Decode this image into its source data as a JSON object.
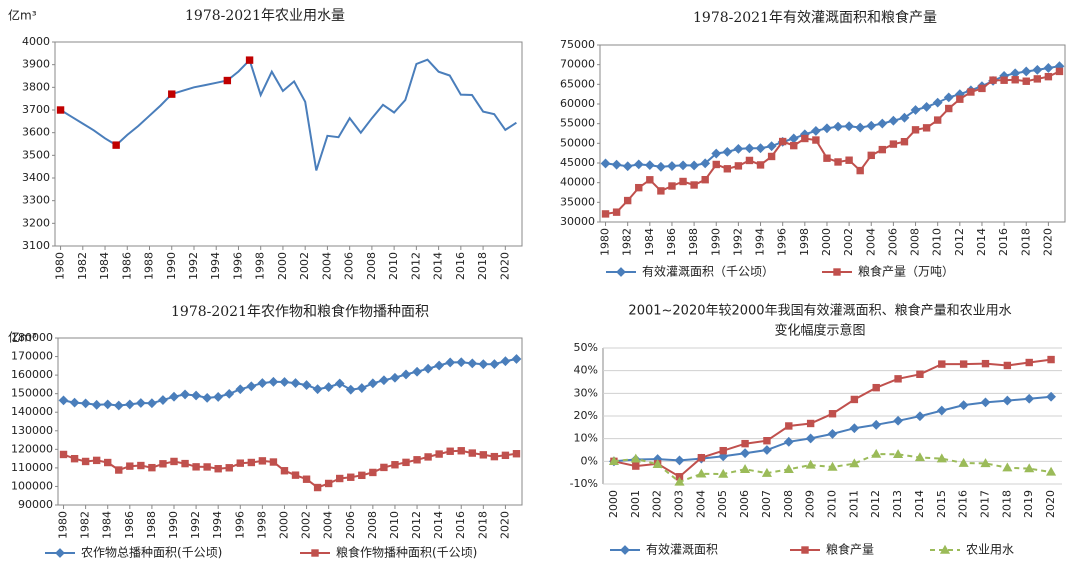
{
  "chart_data": [
    {
      "type": "line",
      "title": "1978-2021年农业用水量",
      "y_label": "亿m³",
      "x": [
        1980,
        1981,
        1982,
        1983,
        1984,
        1985,
        1986,
        1987,
        1988,
        1989,
        1990,
        1991,
        1992,
        1993,
        1994,
        1995,
        1996,
        1997,
        1998,
        1999,
        2000,
        2001,
        2002,
        2003,
        2004,
        2005,
        2006,
        2007,
        2008,
        2009,
        2010,
        2011,
        2012,
        2013,
        2014,
        2015,
        2016,
        2017,
        2018,
        2019,
        2020,
        2021
      ],
      "xlim": [
        1979.5,
        2021.5
      ],
      "xticks": [
        1980,
        1982,
        1984,
        1986,
        1988,
        1990,
        1992,
        1994,
        1996,
        1998,
        2000,
        2002,
        2004,
        2006,
        2008,
        2010,
        2012,
        2014,
        2016,
        2018,
        2020
      ],
      "ylim": [
        3100,
        4000
      ],
      "yticks": [
        3100,
        3200,
        3300,
        3400,
        3500,
        3600,
        3700,
        3800,
        3900,
        4000
      ],
      "series": [
        {
          "color": "#4a7ebb",
          "values": [
            3700,
            3670,
            3640,
            3610,
            3575,
            3545,
            3590,
            3630,
            3675,
            3720,
            3770,
            3785,
            3800,
            3810,
            3820,
            3830,
            3870,
            3920,
            3766,
            3869,
            3784,
            3826,
            3736,
            3433,
            3586,
            3580,
            3664,
            3600,
            3664,
            3723,
            3689,
            3744,
            3903,
            3922,
            3869,
            3852,
            3768,
            3766,
            3693,
            3682,
            3612,
            3644
          ]
        },
        {
          "color": "#c00000",
          "marker": "square",
          "line": false,
          "values": [
            3700,
            null,
            null,
            null,
            null,
            3545,
            null,
            null,
            null,
            null,
            3770,
            null,
            null,
            null,
            null,
            3830,
            null,
            3920,
            null,
            null,
            null,
            null,
            null,
            null,
            null,
            null,
            null,
            null,
            null,
            null,
            null,
            null,
            null,
            null,
            null,
            null,
            null,
            null,
            null,
            null,
            null,
            null
          ]
        }
      ]
    },
    {
      "type": "line",
      "title": "1978-2021年有效灌溉面积和粮食产量",
      "x": [
        1980,
        1981,
        1982,
        1983,
        1984,
        1985,
        1986,
        1987,
        1988,
        1989,
        1990,
        1991,
        1992,
        1993,
        1994,
        1995,
        1996,
        1997,
        1998,
        1999,
        2000,
        2001,
        2002,
        2003,
        2004,
        2005,
        2006,
        2007,
        2008,
        2009,
        2010,
        2011,
        2012,
        2013,
        2014,
        2015,
        2016,
        2017,
        2018,
        2019,
        2020,
        2021
      ],
      "xlim": [
        1979.5,
        2021.5
      ],
      "xticks": [
        1980,
        1982,
        1984,
        1986,
        1988,
        1990,
        1992,
        1994,
        1996,
        1998,
        2000,
        2002,
        2004,
        2006,
        2008,
        2010,
        2012,
        2014,
        2016,
        2018,
        2020
      ],
      "ylim": [
        30000,
        75000
      ],
      "yticks": [
        30000,
        35000,
        40000,
        45000,
        50000,
        55000,
        60000,
        65000,
        70000,
        75000
      ],
      "series": [
        {
          "name": "有效灌溉面积（千公顷）",
          "color": "#4a7ebb",
          "marker": "diamond",
          "values": [
            44888,
            44574,
            44177,
            44644,
            44453,
            44036,
            44226,
            44403,
            44376,
            44917,
            47403,
            47822,
            48590,
            48728,
            48759,
            49281,
            50381,
            51239,
            52296,
            53158,
            53820,
            54249,
            54355,
            54014,
            54478,
            55029,
            55751,
            56518,
            58472,
            59261,
            60348,
            61682,
            62491,
            63473,
            64540,
            65873,
            67141,
            67816,
            68272,
            68679,
            69161,
            69609
          ]
        },
        {
          "name": "粮食产量（万吨）",
          "color": "#c0504d",
          "marker": "square",
          "values": [
            32056,
            32502,
            35450,
            38728,
            40731,
            37911,
            39151,
            40298,
            39408,
            40755,
            44624,
            43529,
            44266,
            45649,
            44510,
            46662,
            50454,
            49417,
            51230,
            50839,
            46218,
            45264,
            45706,
            43070,
            46947,
            48402,
            49804,
            50414,
            53434,
            53941,
            55911,
            58849,
            61223,
            63048,
            63965,
            66060,
            66044,
            66161,
            65789,
            66384,
            66949,
            68285
          ]
        }
      ]
    },
    {
      "type": "line",
      "title": "1978-2021年农作物和粮食作物播种面积",
      "y_label": "亿m³",
      "x": [
        1980,
        1981,
        1982,
        1983,
        1984,
        1985,
        1986,
        1987,
        1988,
        1989,
        1990,
        1991,
        1992,
        1993,
        1994,
        1995,
        1996,
        1997,
        1998,
        1999,
        2000,
        2001,
        2002,
        2003,
        2004,
        2005,
        2006,
        2007,
        2008,
        2009,
        2010,
        2011,
        2012,
        2013,
        2014,
        2015,
        2016,
        2017,
        2018,
        2019,
        2020,
        2021
      ],
      "xlim": [
        1979.5,
        2021.5
      ],
      "xticks": [
        1980,
        1982,
        1984,
        1986,
        1988,
        1990,
        1992,
        1994,
        1996,
        1998,
        2000,
        2002,
        2004,
        2006,
        2008,
        2010,
        2012,
        2014,
        2016,
        2018,
        2020
      ],
      "ylim": [
        90000,
        180000
      ],
      "yticks": [
        90000,
        100000,
        110000,
        120000,
        130000,
        140000,
        150000,
        160000,
        170000,
        180000
      ],
      "series": [
        {
          "name": "农作物总播种面积(千公顷)",
          "color": "#4a7ebb",
          "marker": "diamond",
          "values": [
            146380,
            145157,
            144755,
            143993,
            144221,
            143626,
            144204,
            144957,
            144869,
            146554,
            148362,
            149586,
            149007,
            147741,
            148241,
            149879,
            152381,
            153969,
            155706,
            156373,
            156300,
            155708,
            154636,
            152415,
            153553,
            155488,
            152149,
            153010,
            155566,
            157242,
            158579,
            160360,
            161827,
            163453,
            165183,
            166829,
            166939,
            166332,
            165902,
            165931,
            167487,
            168695
          ]
        },
        {
          "name": "粮食作物播种面积(千公顷)",
          "color": "#c0504d",
          "marker": "square",
          "values": [
            117234,
            114958,
            113463,
            114047,
            112884,
            108845,
            110933,
            111268,
            110123,
            112205,
            113466,
            112314,
            110560,
            110509,
            109544,
            110060,
            112548,
            112912,
            113787,
            113161,
            108463,
            106080,
            103891,
            99410,
            101606,
            104278,
            104958,
            105998,
            107545,
            110255,
            111695,
            112980,
            114368,
            115908,
            117455,
            118963,
            119230,
            117989,
            117038,
            116064,
            116768,
            117631
          ]
        }
      ]
    },
    {
      "type": "line",
      "title": [
        "2001~2020年较2000年我国有效灌溉面积、粮食产量和农业用水",
        "变化幅度示意图"
      ],
      "grid": true,
      "categories": [
        "2000",
        "2001",
        "2002",
        "2003",
        "2004",
        "2005",
        "2006",
        "2007",
        "2008",
        "2009",
        "2010",
        "2011",
        "2012",
        "2013",
        "2014",
        "2015",
        "2016",
        "2017",
        "2018",
        "2019",
        "2020"
      ],
      "ylim": [
        -10,
        50
      ],
      "yticks": [
        {
          "value": -10,
          "label": "-10%"
        },
        {
          "value": 0,
          "label": "0%"
        },
        {
          "value": 10,
          "label": "10%"
        },
        {
          "value": 20,
          "label": "20%"
        },
        {
          "value": 30,
          "label": "30%"
        },
        {
          "value": 40,
          "label": "40%"
        },
        {
          "value": 50,
          "label": "50%"
        }
      ],
      "series": [
        {
          "name": "有效灌溉面积",
          "color": "#4a7ebb",
          "marker": "diamond",
          "values": [
            0,
            0.8,
            1.0,
            0.4,
            1.2,
            2.2,
            3.6,
            5.0,
            8.6,
            10.1,
            12.1,
            14.6,
            16.1,
            17.9,
            19.9,
            22.4,
            24.8,
            26.0,
            26.8,
            27.6,
            28.5
          ]
        },
        {
          "name": "粮食产量",
          "color": "#c0504d",
          "marker": "square",
          "values": [
            0,
            -2.1,
            -1.1,
            -6.8,
            1.6,
            4.7,
            7.8,
            9.1,
            15.6,
            16.7,
            21.0,
            27.3,
            32.5,
            36.4,
            38.4,
            42.9,
            42.9,
            43.1,
            42.3,
            43.6,
            44.9
          ]
        },
        {
          "name": "农业用水",
          "color": "#9bbb59",
          "marker": "triangle",
          "dash": true,
          "values": [
            0,
            1.1,
            -1.3,
            -9.1,
            -5.5,
            -5.6,
            -3.5,
            -5.2,
            -3.5,
            -1.6,
            -2.5,
            -1.0,
            3.2,
            3.1,
            1.7,
            1.2,
            -0.8,
            -0.9,
            -2.8,
            -3.2,
            -4.7
          ]
        }
      ]
    }
  ]
}
